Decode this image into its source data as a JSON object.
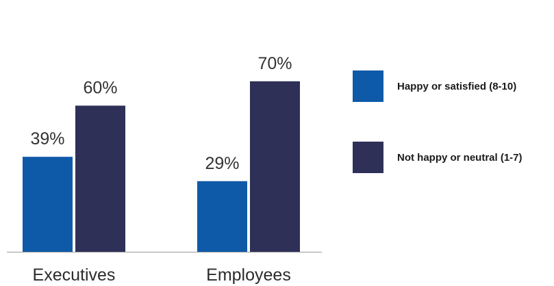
{
  "chart_data": {
    "type": "bar",
    "categories": [
      "Executives",
      "Employees"
    ],
    "series": [
      {
        "name": "Happy or satisfied (8-10)",
        "values": [
          39,
          29
        ],
        "labels": [
          "39%",
          "29%"
        ],
        "color": "#0f5aa8"
      },
      {
        "name": "Not happy or neutral (1-7)",
        "values": [
          60,
          70
        ],
        "labels": [
          "60%",
          "70%"
        ],
        "color": "#2e3058"
      }
    ],
    "ylim": [
      0,
      100
    ],
    "grid": false,
    "legend_position": "right"
  }
}
